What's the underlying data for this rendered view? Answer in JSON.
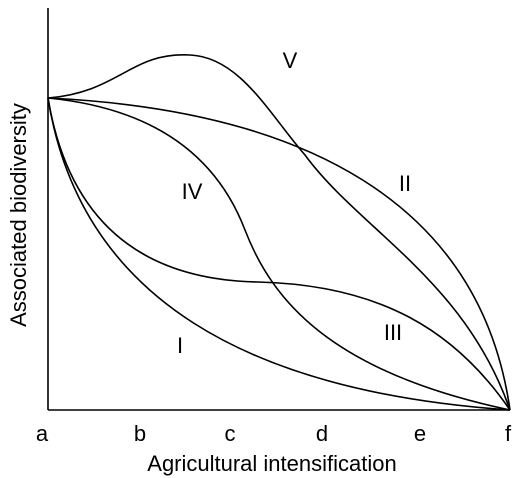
{
  "axes": {
    "x_label": "Agricultural intensification",
    "y_label": "Associated biodiversity",
    "x_points": [
      "a",
      "b",
      "c",
      "d",
      "e",
      "f"
    ]
  },
  "curves": [
    "I",
    "II",
    "III",
    "IV",
    "V"
  ]
}
